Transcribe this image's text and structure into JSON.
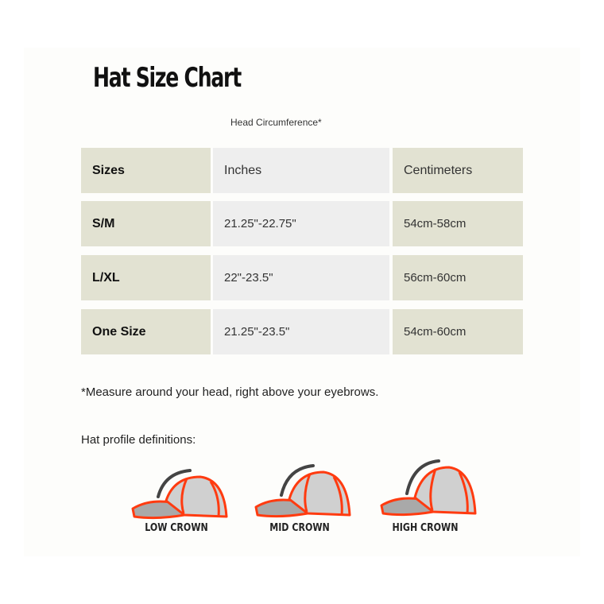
{
  "title": "Hat Size Chart",
  "subheading": "Head Circumference*",
  "table": {
    "headers": [
      "Sizes",
      "Inches",
      "Centimeters"
    ],
    "rows": [
      [
        "S/M",
        "21.25\"-22.75\"",
        "54cm-58cm"
      ],
      [
        "L/XL",
        "22\"-23.5\"",
        "56cm-60cm"
      ],
      [
        "One Size",
        "21.25\"-23.5\"",
        "54cm-60cm"
      ]
    ]
  },
  "footnote": "*Measure around your head, right above your eyebrows.",
  "profiles": {
    "heading": "Hat profile definitions:",
    "items": [
      {
        "label": "LOW CROWN",
        "icon": "baseball-cap-icon"
      },
      {
        "label": "MID CROWN",
        "icon": "baseball-cap-icon"
      },
      {
        "label": "HIGH CROWN",
        "icon": "baseball-cap-icon"
      }
    ]
  },
  "colors": {
    "table_accent": "#e2e2d2",
    "table_middle": "#eeeeee",
    "cap_outline": "#ff3b10",
    "cap_fill": "#c8c8c8"
  }
}
